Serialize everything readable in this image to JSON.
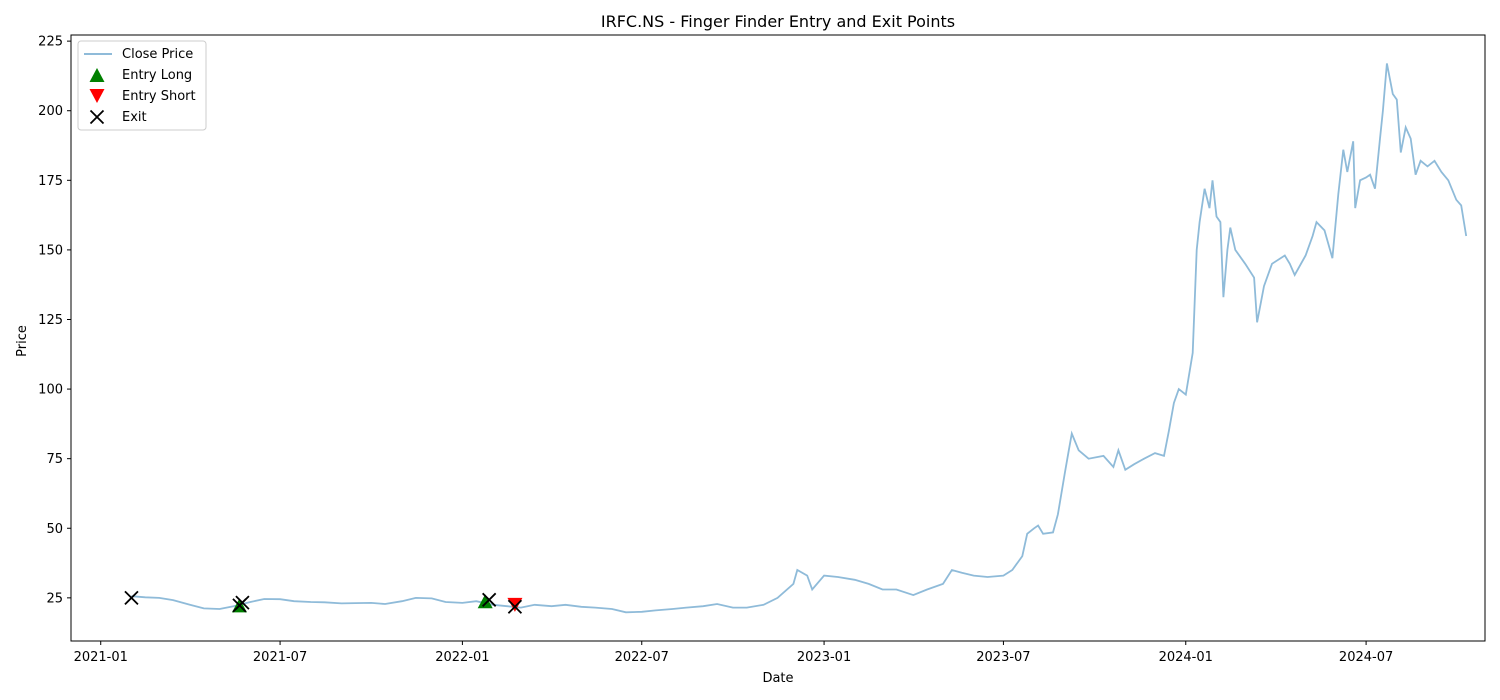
{
  "chart_data": {
    "type": "line",
    "title": "IRFC.NS - Finger Finder Entry and Exit Points",
    "xlabel": "Date",
    "ylabel": "Price",
    "xlim": [
      "2020-12-02",
      "2024-10-29"
    ],
    "ylim": [
      9.5,
      227.2
    ],
    "x_ticks": [
      "2021-01",
      "2021-07",
      "2022-01",
      "2022-07",
      "2023-01",
      "2023-07",
      "2024-01",
      "2024-07"
    ],
    "y_ticks": [
      25,
      50,
      75,
      100,
      125,
      150,
      175,
      200,
      225
    ],
    "grid": false,
    "legend_position": "top-left",
    "legend": [
      "Close Price",
      "Entry Long",
      "Entry Short",
      "Exit"
    ],
    "colors": {
      "close_price": "#1f77b4",
      "entry_long": "#008000",
      "entry_short": "#ff0000",
      "exit": "#000000"
    },
    "series": [
      {
        "name": "Close Price",
        "points": [
          [
            "2021-02-01",
            25.6
          ],
          [
            "2021-02-15",
            25.2
          ],
          [
            "2021-03-01",
            25.0
          ],
          [
            "2021-03-15",
            24.2
          ],
          [
            "2021-04-01",
            22.5
          ],
          [
            "2021-04-15",
            21.2
          ],
          [
            "2021-05-01",
            21.0
          ],
          [
            "2021-05-15",
            22.0
          ],
          [
            "2021-06-01",
            23.5
          ],
          [
            "2021-06-15",
            24.6
          ],
          [
            "2021-07-01",
            24.5
          ],
          [
            "2021-07-15",
            23.8
          ],
          [
            "2021-08-01",
            23.5
          ],
          [
            "2021-08-15",
            23.4
          ],
          [
            "2021-09-01",
            23.0
          ],
          [
            "2021-09-15",
            23.1
          ],
          [
            "2021-10-01",
            23.2
          ],
          [
            "2021-10-15",
            22.8
          ],
          [
            "2021-11-01",
            23.8
          ],
          [
            "2021-11-15",
            25.0
          ],
          [
            "2021-12-01",
            24.8
          ],
          [
            "2021-12-15",
            23.5
          ],
          [
            "2022-01-01",
            23.2
          ],
          [
            "2022-01-15",
            23.8
          ],
          [
            "2022-02-01",
            22.5
          ],
          [
            "2022-02-15",
            22.0
          ],
          [
            "2022-03-01",
            21.5
          ],
          [
            "2022-03-15",
            22.5
          ],
          [
            "2022-04-01",
            22.0
          ],
          [
            "2022-04-15",
            22.5
          ],
          [
            "2022-05-01",
            21.8
          ],
          [
            "2022-05-15",
            21.5
          ],
          [
            "2022-06-01",
            21.0
          ],
          [
            "2022-06-15",
            19.8
          ],
          [
            "2022-07-01",
            20.0
          ],
          [
            "2022-07-15",
            20.5
          ],
          [
            "2022-08-01",
            21.0
          ],
          [
            "2022-08-15",
            21.5
          ],
          [
            "2022-09-01",
            22.0
          ],
          [
            "2022-09-15",
            22.8
          ],
          [
            "2022-10-01",
            21.5
          ],
          [
            "2022-10-15",
            21.5
          ],
          [
            "2022-11-01",
            22.5
          ],
          [
            "2022-11-15",
            25.0
          ],
          [
            "2022-12-01",
            30.0
          ],
          [
            "2022-12-05",
            35.0
          ],
          [
            "2022-12-15",
            33.0
          ],
          [
            "2022-12-20",
            28.0
          ],
          [
            "2023-01-01",
            33.0
          ],
          [
            "2023-01-15",
            32.5
          ],
          [
            "2023-02-01",
            31.5
          ],
          [
            "2023-02-15",
            30.0
          ],
          [
            "2023-03-01",
            28.0
          ],
          [
            "2023-03-15",
            28.0
          ],
          [
            "2023-04-01",
            26.0
          ],
          [
            "2023-04-15",
            28.0
          ],
          [
            "2023-05-01",
            30.0
          ],
          [
            "2023-05-10",
            35.0
          ],
          [
            "2023-05-20",
            34.0
          ],
          [
            "2023-06-01",
            33.0
          ],
          [
            "2023-06-15",
            32.5
          ],
          [
            "2023-07-01",
            33.0
          ],
          [
            "2023-07-10",
            35.0
          ],
          [
            "2023-07-20",
            40.0
          ],
          [
            "2023-07-25",
            48.0
          ],
          [
            "2023-08-01",
            50.0
          ],
          [
            "2023-08-05",
            51.0
          ],
          [
            "2023-08-10",
            48.0
          ],
          [
            "2023-08-20",
            48.5
          ],
          [
            "2023-08-25",
            55.0
          ],
          [
            "2023-09-01",
            70.0
          ],
          [
            "2023-09-05",
            78.0
          ],
          [
            "2023-09-08",
            84.0
          ],
          [
            "2023-09-15",
            78.0
          ],
          [
            "2023-09-25",
            75.0
          ],
          [
            "2023-10-10",
            76.0
          ],
          [
            "2023-10-20",
            72.0
          ],
          [
            "2023-10-25",
            78.0
          ],
          [
            "2023-11-01",
            71.0
          ],
          [
            "2023-11-10",
            73.0
          ],
          [
            "2023-11-20",
            75.0
          ],
          [
            "2023-12-01",
            77.0
          ],
          [
            "2023-12-10",
            76.0
          ],
          [
            "2023-12-15",
            85.0
          ],
          [
            "2023-12-20",
            95.0
          ],
          [
            "2023-12-25",
            100.0
          ],
          [
            "2024-01-01",
            98.0
          ],
          [
            "2024-01-08",
            113.0
          ],
          [
            "2024-01-12",
            150.0
          ],
          [
            "2024-01-15",
            160.0
          ],
          [
            "2024-01-20",
            172.0
          ],
          [
            "2024-01-25",
            165.0
          ],
          [
            "2024-01-28",
            175.0
          ],
          [
            "2024-02-01",
            162.0
          ],
          [
            "2024-02-05",
            160.0
          ],
          [
            "2024-02-08",
            133.0
          ],
          [
            "2024-02-12",
            150.0
          ],
          [
            "2024-02-15",
            158.0
          ],
          [
            "2024-02-20",
            150.0
          ],
          [
            "2024-03-01",
            145.0
          ],
          [
            "2024-03-10",
            140.0
          ],
          [
            "2024-03-13",
            124.0
          ],
          [
            "2024-03-20",
            137.0
          ],
          [
            "2024-03-28",
            145.0
          ],
          [
            "2024-04-10",
            148.0
          ],
          [
            "2024-04-15",
            145.0
          ],
          [
            "2024-04-20",
            141.0
          ],
          [
            "2024-05-01",
            148.0
          ],
          [
            "2024-05-08",
            155.0
          ],
          [
            "2024-05-12",
            160.0
          ],
          [
            "2024-05-20",
            157.0
          ],
          [
            "2024-05-28",
            147.0
          ],
          [
            "2024-06-03",
            170.0
          ],
          [
            "2024-06-08",
            186.0
          ],
          [
            "2024-06-12",
            178.0
          ],
          [
            "2024-06-18",
            189.0
          ],
          [
            "2024-06-20",
            165.0
          ],
          [
            "2024-06-25",
            175.0
          ],
          [
            "2024-07-01",
            176.0
          ],
          [
            "2024-07-05",
            177.0
          ],
          [
            "2024-07-10",
            172.0
          ],
          [
            "2024-07-15",
            190.0
          ],
          [
            "2024-07-18",
            200.0
          ],
          [
            "2024-07-22",
            217.0
          ],
          [
            "2024-07-28",
            206.0
          ],
          [
            "2024-08-01",
            204.0
          ],
          [
            "2024-08-05",
            185.0
          ],
          [
            "2024-08-10",
            194.0
          ],
          [
            "2024-08-15",
            190.0
          ],
          [
            "2024-08-20",
            177.0
          ],
          [
            "2024-08-25",
            182.0
          ],
          [
            "2024-09-01",
            180.0
          ],
          [
            "2024-09-08",
            182.0
          ],
          [
            "2024-09-15",
            178.0
          ],
          [
            "2024-09-22",
            175.0
          ],
          [
            "2024-09-30",
            168.0
          ],
          [
            "2024-10-05",
            166.0
          ],
          [
            "2024-10-10",
            155.0
          ]
        ]
      },
      {
        "name": "Entry Long",
        "points": [
          [
            "2021-05-21",
            22.3
          ],
          [
            "2022-01-24",
            23.8
          ]
        ]
      },
      {
        "name": "Entry Short",
        "points": [
          [
            "2022-02-23",
            22.5
          ]
        ]
      },
      {
        "name": "Exit",
        "points": [
          [
            "2021-02-01",
            25.0
          ],
          [
            "2021-05-21",
            22.3
          ],
          [
            "2021-05-24",
            23.3
          ],
          [
            "2022-01-28",
            24.3
          ],
          [
            "2022-02-23",
            21.8
          ]
        ]
      }
    ]
  }
}
